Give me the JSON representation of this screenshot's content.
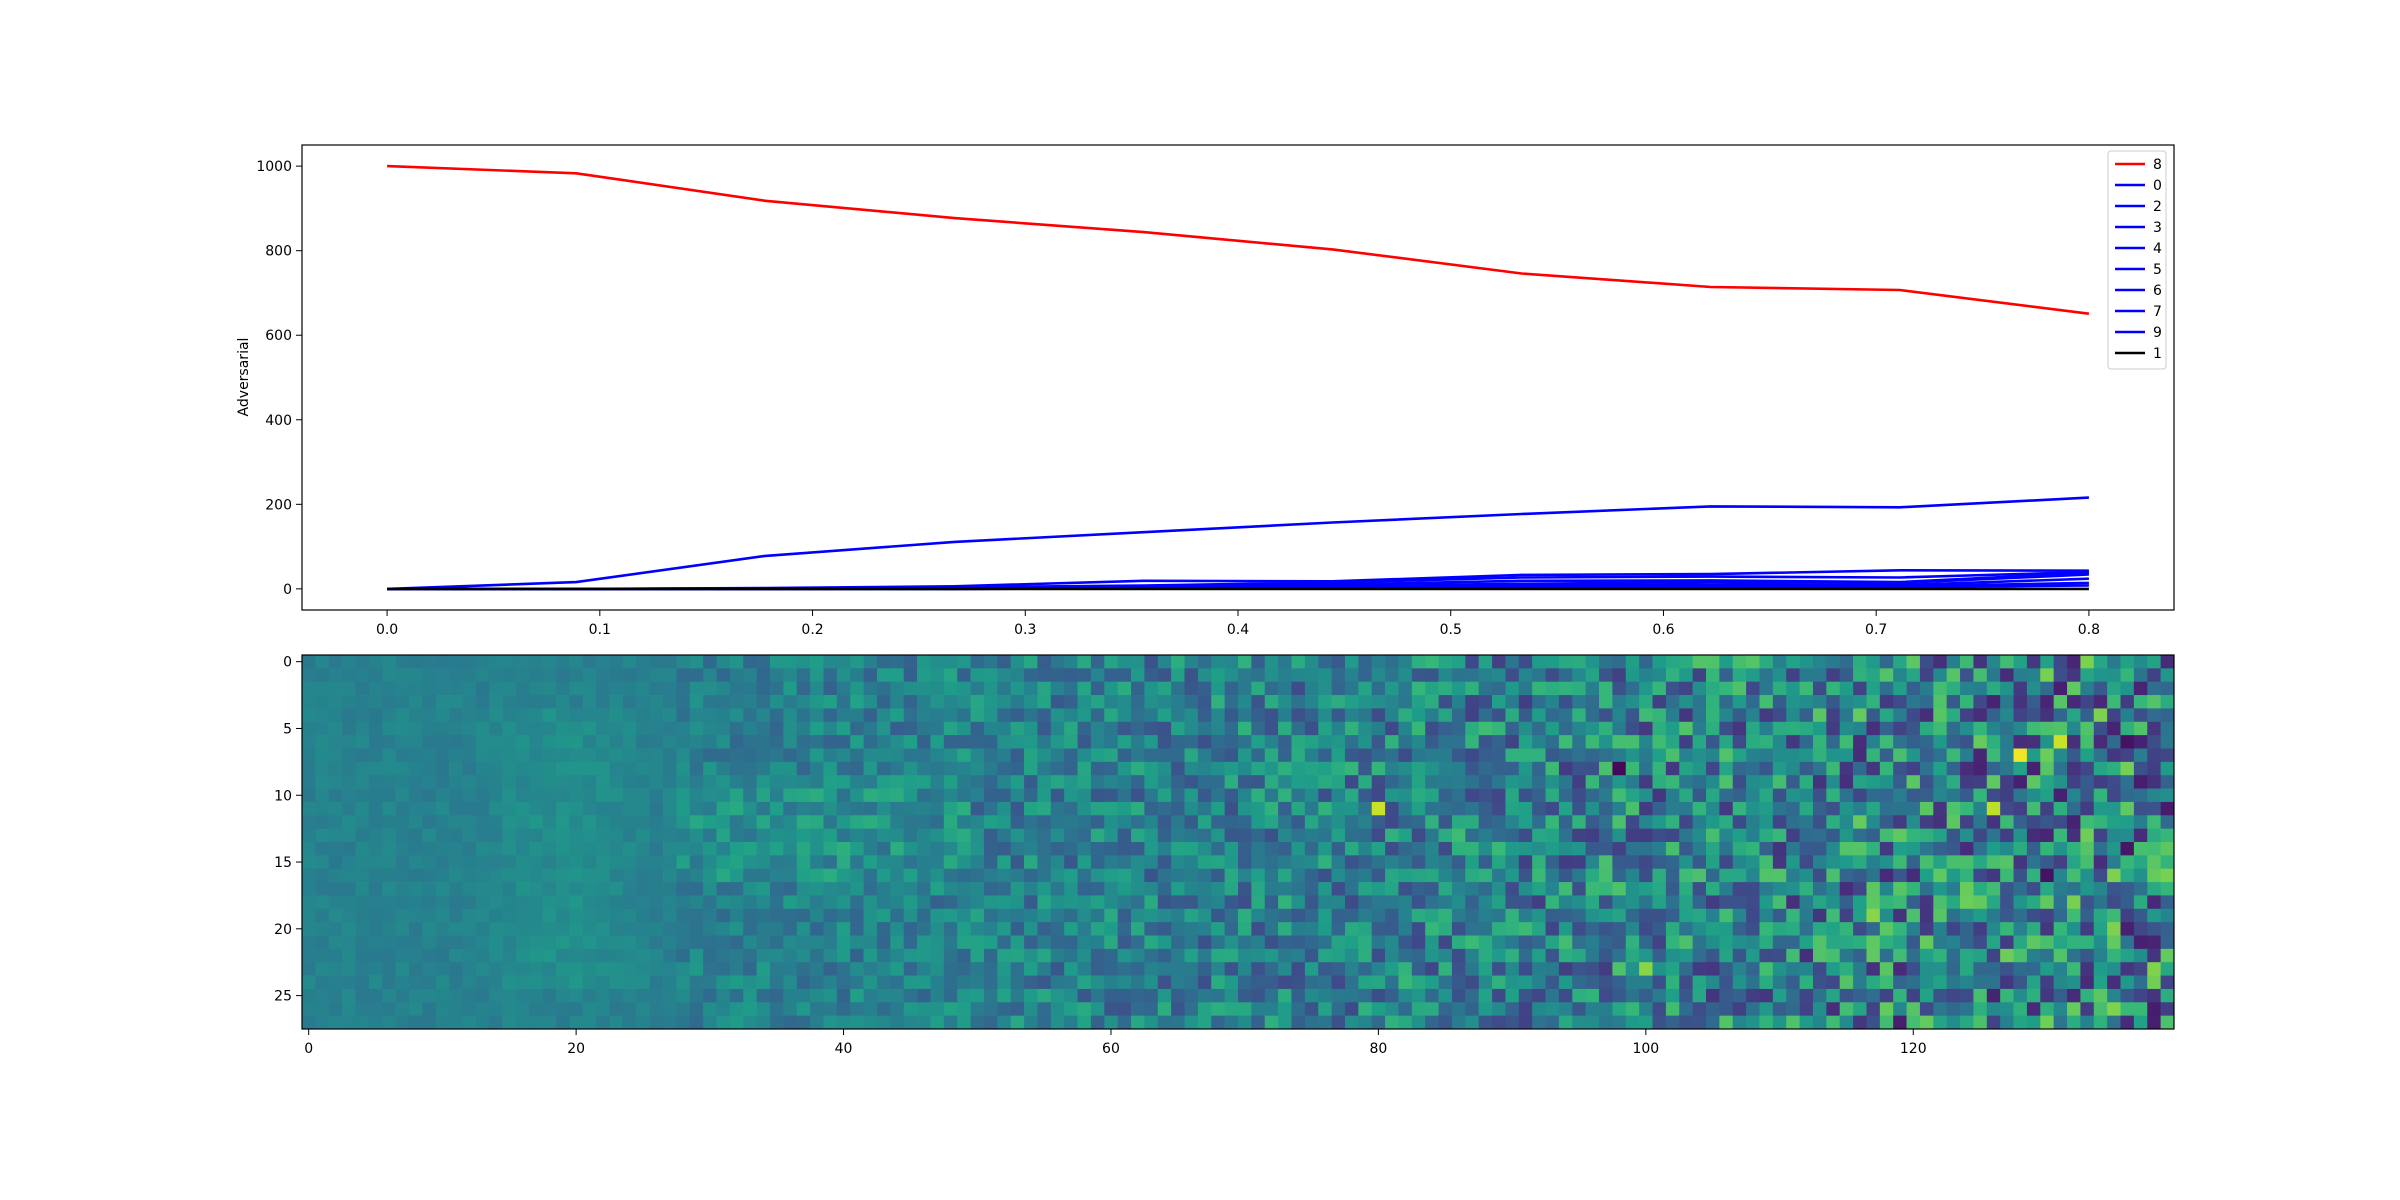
{
  "chart_data": [
    {
      "type": "line",
      "title": "",
      "xlabel": "",
      "ylabel": "Adversarial",
      "xlim": [
        -0.04,
        0.84
      ],
      "ylim": [
        -50,
        1050
      ],
      "xticks": [
        0.0,
        0.1,
        0.2,
        0.3,
        0.4,
        0.5,
        0.6,
        0.7,
        0.8
      ],
      "xtick_labels": [
        "0.0",
        "0.1",
        "0.2",
        "0.3",
        "0.4",
        "0.5",
        "0.6",
        "0.7",
        "0.8"
      ],
      "yticks": [
        0,
        200,
        400,
        600,
        800,
        1000
      ],
      "ytick_labels": [
        "0",
        "200",
        "400",
        "600",
        "800",
        "1000"
      ],
      "legend_position": "top-right",
      "x": [
        0.0,
        0.0889,
        0.1778,
        0.2667,
        0.3556,
        0.4444,
        0.5333,
        0.6222,
        0.7111,
        0.8
      ],
      "series": [
        {
          "name": "8",
          "color": "#ff0000",
          "values": [
            1000,
            983,
            918,
            877,
            844,
            803,
            746,
            714,
            707,
            651
          ]
        },
        {
          "name": "0",
          "color": "#0000ff",
          "values": [
            0,
            16,
            78,
            111,
            134,
            157,
            177,
            195,
            193,
            216
          ]
        },
        {
          "name": "2",
          "color": "#0000ff",
          "values": [
            0,
            0,
            2,
            6,
            19,
            18,
            33,
            35,
            44,
            43
          ]
        },
        {
          "name": "3",
          "color": "#0000ff",
          "values": [
            0,
            0,
            1,
            4,
            8,
            15,
            27,
            29,
            27,
            40
          ]
        },
        {
          "name": "4",
          "color": "#0000ff",
          "values": [
            0,
            0,
            1,
            2,
            4,
            10,
            19,
            20,
            16,
            38
          ]
        },
        {
          "name": "5",
          "color": "#0000ff",
          "values": [
            0,
            0,
            0,
            1,
            3,
            7,
            12,
            16,
            14,
            34
          ]
        },
        {
          "name": "6",
          "color": "#0000ff",
          "values": [
            0,
            0,
            0,
            1,
            2,
            5,
            8,
            10,
            9,
            24
          ]
        },
        {
          "name": "7",
          "color": "#0000ff",
          "values": [
            0,
            0,
            0,
            0,
            1,
            3,
            5,
            6,
            6,
            14
          ]
        },
        {
          "name": "9",
          "color": "#0000ff",
          "values": [
            0,
            0,
            0,
            0,
            1,
            2,
            3,
            4,
            4,
            8
          ]
        },
        {
          "name": "1",
          "color": "#000000",
          "values": [
            0,
            0,
            0,
            0,
            0,
            0,
            0,
            0,
            0,
            0
          ]
        }
      ]
    },
    {
      "type": "heatmap",
      "title": "",
      "colormap": "viridis",
      "rows": 28,
      "cols": 140,
      "value_range": [
        0,
        1
      ],
      "xticks": [
        0,
        20,
        40,
        60,
        80,
        100,
        120
      ],
      "xtick_labels": [
        "0",
        "20",
        "40",
        "60",
        "80",
        "100",
        "120"
      ],
      "yticks": [
        0,
        5,
        10,
        15,
        20,
        25
      ],
      "ytick_labels": [
        "0",
        "5",
        "10",
        "15",
        "20",
        "25"
      ],
      "value_model": "noisy pixel field: calm region columns 0–27 near 0.42–0.50, noise amplitude grows with column index; a few bright outliers near columns 80, 118, 128–131 and dark outliers near columns 98, 132–136"
    }
  ]
}
